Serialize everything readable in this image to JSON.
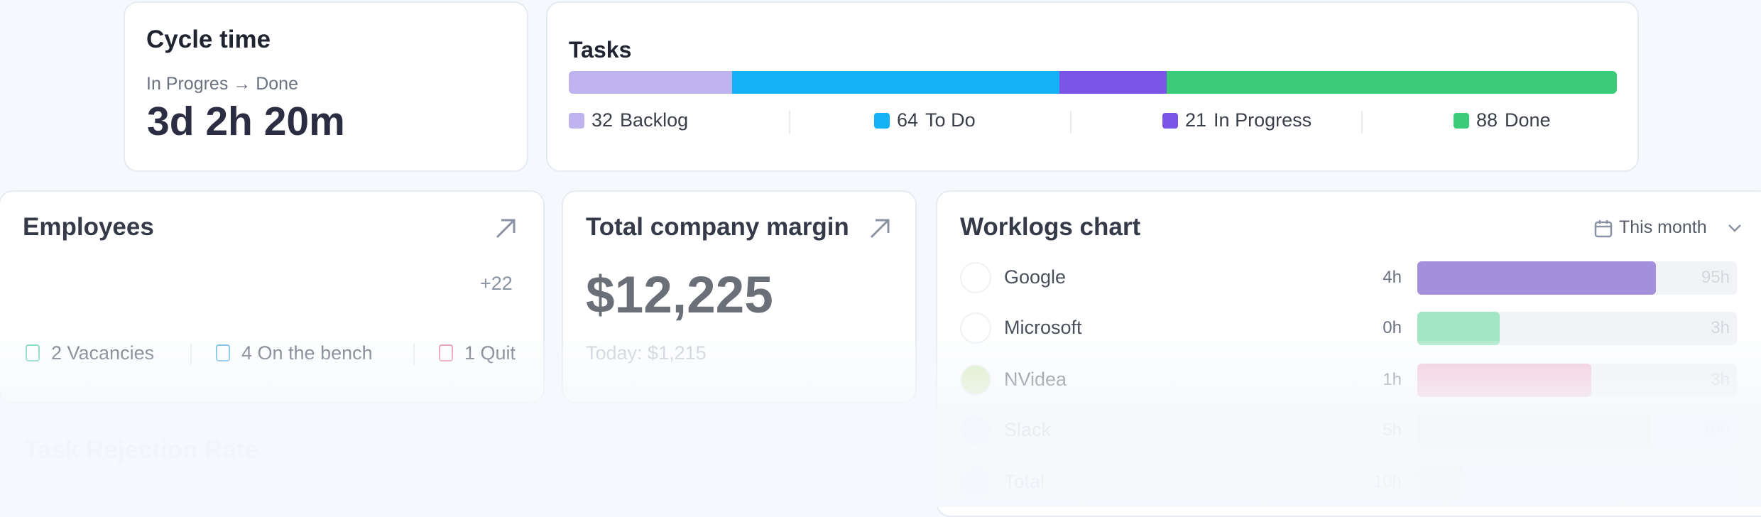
{
  "cycle_time": {
    "title": "Cycle time",
    "subtitle": "In Progres → Done",
    "value": "3d 2h 20m"
  },
  "tasks": {
    "title": "Tasks",
    "segments": [
      {
        "count": 32,
        "label": "Backlog",
        "color": "#c0b4f0"
      },
      {
        "count": 64,
        "label": "To Do",
        "color": "#16b2f8"
      },
      {
        "count": 21,
        "label": "In Progress",
        "color": "#7a55e6"
      },
      {
        "count": 88,
        "label": "Done",
        "color": "#3ccb78"
      }
    ]
  },
  "employees": {
    "title": "Employees",
    "more": "+22",
    "stats": [
      "2 Vacancies",
      "4 On the bench",
      "1 Quit"
    ]
  },
  "margin": {
    "title": "Total company margin",
    "value": "$12,225",
    "today": "Today: $1,215"
  },
  "worklogs": {
    "title": "Worklogs chart",
    "filter": "This month",
    "rows": [
      {
        "name": "Google",
        "spent": "4h",
        "total": "95h",
        "color": "#a38fdc"
      },
      {
        "name": "Microsoft",
        "spent": "0h",
        "total": "3h",
        "color": "#a3e6c4"
      },
      {
        "name": "NVidea",
        "spent": "1h",
        "total": "3h",
        "color": "#f2bfd2"
      },
      {
        "name": "Slack",
        "spent": "5h",
        "total": "10h",
        "color": "#f5e1d6"
      },
      {
        "name": "Total",
        "spent": "10h",
        "total": "",
        "color": "#f0dde6"
      }
    ]
  },
  "rejection": {
    "title": "Task Rejection Rate"
  }
}
